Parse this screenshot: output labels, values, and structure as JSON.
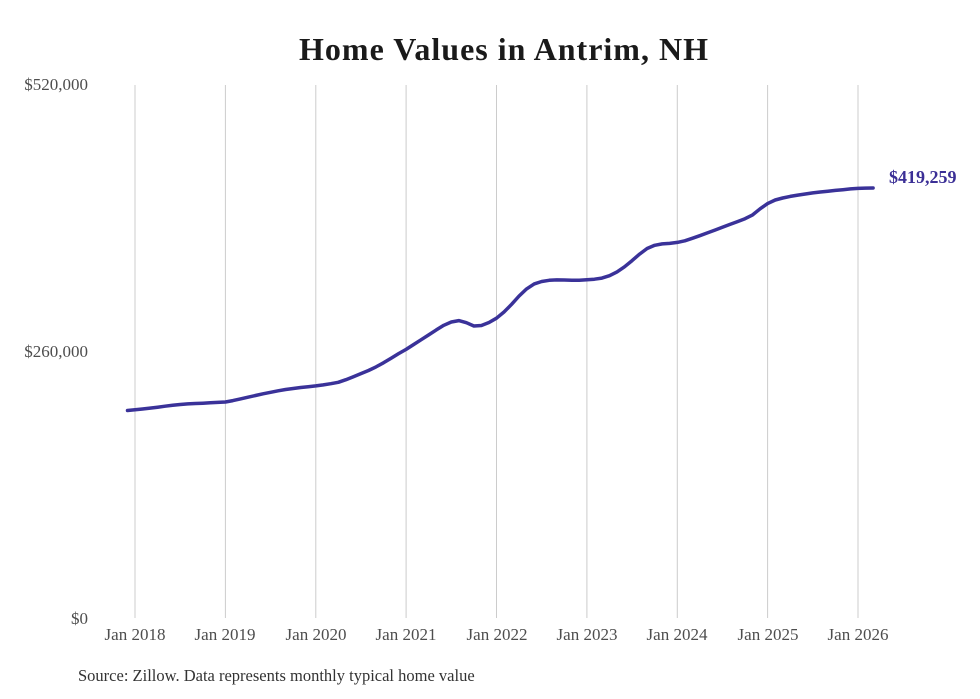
{
  "chart": {
    "title": "Home Values in Antrim, NH",
    "latest_value_label": "$419,259",
    "source_note": "Source: Zillow. Data represents monthly typical home value",
    "colors": {
      "line": "#3a3299",
      "latest_label": "#3b2f96",
      "grid": "#cccccc",
      "tick_text": "#4d4d4d",
      "title_text": "#1a1a1a",
      "source_text": "#333333"
    }
  },
  "chart_data": {
    "type": "line",
    "title": "Home Values in Antrim, NH",
    "x_tick_labels": [
      "Jan 2018",
      "Jan 2019",
      "Jan 2020",
      "Jan 2021",
      "Jan 2022",
      "Jan 2023",
      "Jan 2024",
      "Jan 2025",
      "Jan 2026"
    ],
    "y_ticks": [
      {
        "value": 520000,
        "label": "$520,000"
      },
      {
        "value": 260000,
        "label": "$260,000"
      },
      {
        "value": 0,
        "label": "$0"
      }
    ],
    "ylim": [
      0,
      520000
    ],
    "grid": "vertical-yearly-only",
    "legend": "none",
    "annotation": {
      "text": "$419,259",
      "value": 419259,
      "position": "line-end"
    },
    "series": [
      {
        "name": "Typical home value",
        "start_month": "2017-12",
        "frequency": "monthly",
        "values": [
          202500,
          203200,
          204000,
          204900,
          205800,
          206700,
          207600,
          208400,
          209000,
          209400,
          209700,
          210000,
          210400,
          210800,
          212200,
          213800,
          215500,
          217200,
          218800,
          220300,
          221700,
          223000,
          224000,
          224900,
          225700,
          226500,
          227500,
          228600,
          230000,
          232500,
          235500,
          238500,
          241500,
          245000,
          249000,
          253500,
          258000,
          262000,
          266800,
          271500,
          276200,
          281000,
          285500,
          288700,
          290100,
          288000,
          284800,
          285300,
          288200,
          292400,
          298500,
          306000,
          314000,
          321000,
          325800,
          328200,
          329300,
          329700,
          329600,
          329300,
          329300,
          329800,
          330400,
          331500,
          333800,
          337500,
          342500,
          348500,
          354800,
          360300,
          363400,
          364800,
          365300,
          366200,
          367800,
          370200,
          372800,
          375500,
          378200,
          381000,
          383800,
          386500,
          389300,
          393000,
          399000,
          404000,
          407500,
          409500,
          411000,
          412300,
          413400,
          414400,
          415300,
          416100,
          416900,
          417600,
          418300,
          418800,
          419100,
          419259
        ]
      }
    ]
  }
}
